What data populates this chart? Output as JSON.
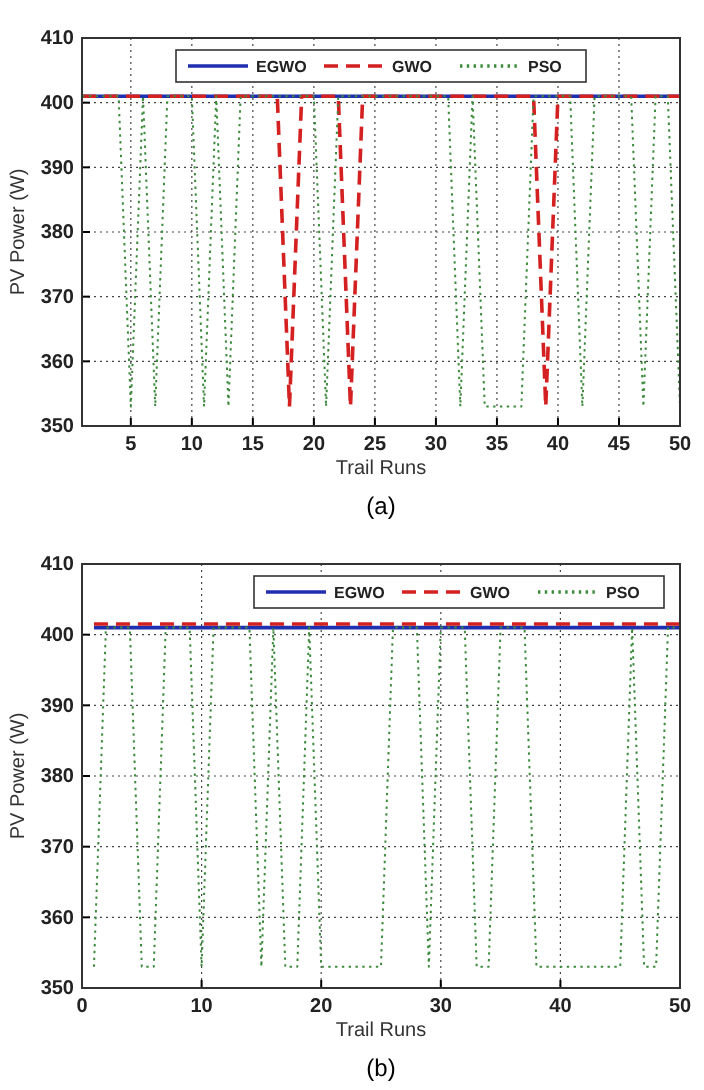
{
  "chart_data": [
    {
      "type": "line",
      "xlabel": "Trail Runs",
      "ylabel": "PV Power (W)",
      "annotations": [
        "(a)"
      ],
      "legend": "top",
      "grid": true,
      "x": [
        1,
        2,
        3,
        4,
        5,
        6,
        7,
        8,
        9,
        10,
        11,
        12,
        13,
        14,
        15,
        16,
        17,
        18,
        19,
        20,
        21,
        22,
        23,
        24,
        25,
        26,
        27,
        28,
        29,
        30,
        31,
        32,
        33,
        34,
        35,
        36,
        37,
        38,
        39,
        40,
        41,
        42,
        43,
        44,
        45,
        46,
        47,
        48,
        49,
        50
      ],
      "xlim": [
        1,
        50
      ],
      "xticks": [
        5,
        10,
        15,
        20,
        25,
        30,
        35,
        40,
        45,
        50
      ],
      "ylim": [
        350,
        410
      ],
      "yticks": [
        350,
        360,
        370,
        380,
        390,
        400,
        410
      ],
      "series": [
        {
          "name": "EGWO",
          "color": "#1f2fb0",
          "line_style": "solid",
          "values": [
            401,
            401,
            401,
            401,
            401,
            401,
            401,
            401,
            401,
            401,
            401,
            401,
            401,
            401,
            401,
            401,
            401,
            401,
            401,
            401,
            401,
            401,
            401,
            401,
            401,
            401,
            401,
            401,
            401,
            401,
            401,
            401,
            401,
            401,
            401,
            401,
            401,
            401,
            401,
            401,
            401,
            401,
            401,
            401,
            401,
            401,
            401,
            401,
            401,
            401
          ]
        },
        {
          "name": "GWO",
          "color": "#d42020",
          "line_style": "dashed",
          "values": [
            401,
            401,
            401,
            401,
            401,
            401,
            401,
            401,
            401,
            401,
            401,
            401,
            401,
            401,
            401,
            401,
            401,
            353,
            401,
            401,
            401,
            401,
            353,
            401,
            401,
            401,
            401,
            401,
            401,
            401,
            401,
            401,
            401,
            401,
            401,
            401,
            401,
            401,
            353,
            401,
            401,
            401,
            401,
            401,
            401,
            401,
            401,
            401,
            401,
            401
          ]
        },
        {
          "name": "PSO",
          "color": "#3d8a3d",
          "line_style": "dotted",
          "values": [
            401,
            401,
            401,
            401,
            353,
            401,
            353,
            401,
            401,
            401,
            353,
            401,
            353,
            401,
            401,
            401,
            401,
            401,
            401,
            401,
            353,
            401,
            401,
            401,
            401,
            401,
            401,
            401,
            401,
            401,
            401,
            353,
            401,
            353,
            353,
            353,
            353,
            401,
            401,
            401,
            401,
            353,
            401,
            401,
            401,
            401,
            353,
            401,
            401,
            353
          ]
        }
      ]
    },
    {
      "type": "line",
      "xlabel": "Trail Runs",
      "ylabel": "PV Power (W)",
      "annotations": [
        "(b)"
      ],
      "legend": "top right",
      "grid": true,
      "x": [
        1,
        2,
        3,
        4,
        5,
        6,
        7,
        8,
        9,
        10,
        11,
        12,
        13,
        14,
        15,
        16,
        17,
        18,
        19,
        20,
        21,
        22,
        23,
        24,
        25,
        26,
        27,
        28,
        29,
        30,
        31,
        32,
        33,
        34,
        35,
        36,
        37,
        38,
        39,
        40,
        41,
        42,
        43,
        44,
        45,
        46,
        47,
        48,
        49,
        50
      ],
      "xlim": [
        0,
        50
      ],
      "xticks": [
        0,
        10,
        20,
        30,
        40,
        50
      ],
      "ylim": [
        350,
        410
      ],
      "yticks": [
        350,
        360,
        370,
        380,
        390,
        400,
        410
      ],
      "series": [
        {
          "name": "EGWO",
          "color": "#1f2fb0",
          "line_style": "solid",
          "values": [
            401,
            401,
            401,
            401,
            401,
            401,
            401,
            401,
            401,
            401,
            401,
            401,
            401,
            401,
            401,
            401,
            401,
            401,
            401,
            401,
            401,
            401,
            401,
            401,
            401,
            401,
            401,
            401,
            401,
            401,
            401,
            401,
            401,
            401,
            401,
            401,
            401,
            401,
            401,
            401,
            401,
            401,
            401,
            401,
            401,
            401,
            401,
            401,
            401,
            401
          ]
        },
        {
          "name": "GWO",
          "color": "#d42020",
          "line_style": "dashed",
          "values": [
            401.5,
            401.5,
            401.5,
            401.5,
            401.5,
            401.5,
            401.5,
            401.5,
            401.5,
            401.5,
            401.5,
            401.5,
            401.5,
            401.5,
            401.5,
            401.5,
            401.5,
            401.5,
            401.5,
            401.5,
            401.5,
            401.5,
            401.5,
            401.5,
            401.5,
            401.5,
            401.5,
            401.5,
            401.5,
            401.5,
            401.5,
            401.5,
            401.5,
            401.5,
            401.5,
            401.5,
            401.5,
            401.5,
            401.5,
            401.5,
            401.5,
            401.5,
            401.5,
            401.5,
            401.5,
            401.5,
            401.5,
            401.5,
            401.5,
            401.5
          ]
        },
        {
          "name": "PSO",
          "color": "#3d8a3d",
          "line_style": "dotted",
          "values": [
            353,
            401,
            401,
            401,
            353,
            353,
            401,
            401,
            401,
            353,
            401,
            401,
            401,
            401,
            353,
            401,
            353,
            353,
            401,
            353,
            353,
            353,
            353,
            353,
            353,
            401,
            401,
            401,
            353,
            401,
            401,
            401,
            353,
            353,
            401,
            401,
            401,
            353,
            353,
            353,
            353,
            353,
            353,
            353,
            353,
            401,
            353,
            353,
            401,
            401
          ]
        }
      ]
    }
  ]
}
